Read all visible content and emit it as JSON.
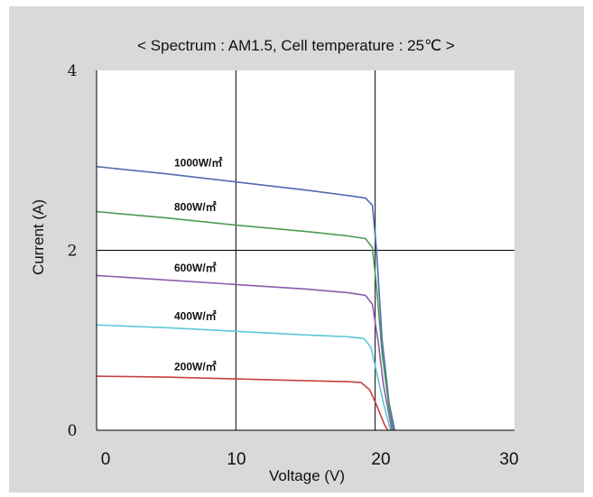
{
  "chart_data": {
    "type": "line",
    "title": "< Spectrum : AM1.5, Cell temperature : 25℃ >",
    "xlabel": "Voltage (V)",
    "ylabel": "Current  (A)",
    "xlim": [
      0,
      30
    ],
    "ylim": [
      0,
      4
    ],
    "x_ticks": [
      "0",
      "10",
      "20",
      "30"
    ],
    "y_ticks": [
      "0",
      "2",
      "4"
    ],
    "grid": true,
    "series": [
      {
        "name": "1000W/㎡",
        "color": "#4f6bb0",
        "points": [
          [
            0,
            2.93
          ],
          [
            5,
            2.85
          ],
          [
            10,
            2.76
          ],
          [
            15,
            2.67
          ],
          [
            18,
            2.61
          ],
          [
            19.3,
            2.58
          ],
          [
            19.8,
            2.5
          ],
          [
            20.1,
            2.0
          ],
          [
            20.5,
            1.0
          ],
          [
            21.0,
            0.3
          ],
          [
            21.4,
            0.0
          ]
        ]
      },
      {
        "name": "800W/㎡",
        "color": "#4a9b52",
        "points": [
          [
            0,
            2.43
          ],
          [
            5,
            2.36
          ],
          [
            10,
            2.28
          ],
          [
            15,
            2.21
          ],
          [
            18,
            2.16
          ],
          [
            19.3,
            2.13
          ],
          [
            19.8,
            2.03
          ],
          [
            20.1,
            1.6
          ],
          [
            20.5,
            0.85
          ],
          [
            21.0,
            0.25
          ],
          [
            21.3,
            0.0
          ]
        ]
      },
      {
        "name": "600W/㎡",
        "color": "#8e5ab0",
        "points": [
          [
            0,
            1.72
          ],
          [
            5,
            1.67
          ],
          [
            10,
            1.62
          ],
          [
            15,
            1.57
          ],
          [
            18,
            1.53
          ],
          [
            19.3,
            1.5
          ],
          [
            19.8,
            1.4
          ],
          [
            20.2,
            1.0
          ],
          [
            20.6,
            0.5
          ],
          [
            21.2,
            0.0
          ]
        ]
      },
      {
        "name": "400W/㎡",
        "color": "#5cc8d8",
        "points": [
          [
            0,
            1.17
          ],
          [
            5,
            1.14
          ],
          [
            10,
            1.1
          ],
          [
            15,
            1.06
          ],
          [
            18,
            1.04
          ],
          [
            19.2,
            1.02
          ],
          [
            19.7,
            0.92
          ],
          [
            20.1,
            0.65
          ],
          [
            20.6,
            0.3
          ],
          [
            21.1,
            0.0
          ]
        ]
      },
      {
        "name": "200W/㎡",
        "color": "#c84040",
        "points": [
          [
            0,
            0.6
          ],
          [
            5,
            0.59
          ],
          [
            10,
            0.57
          ],
          [
            15,
            0.55
          ],
          [
            18,
            0.54
          ],
          [
            19.0,
            0.53
          ],
          [
            19.6,
            0.45
          ],
          [
            20.1,
            0.28
          ],
          [
            20.7,
            0.05
          ],
          [
            20.9,
            0.0
          ]
        ]
      }
    ]
  }
}
